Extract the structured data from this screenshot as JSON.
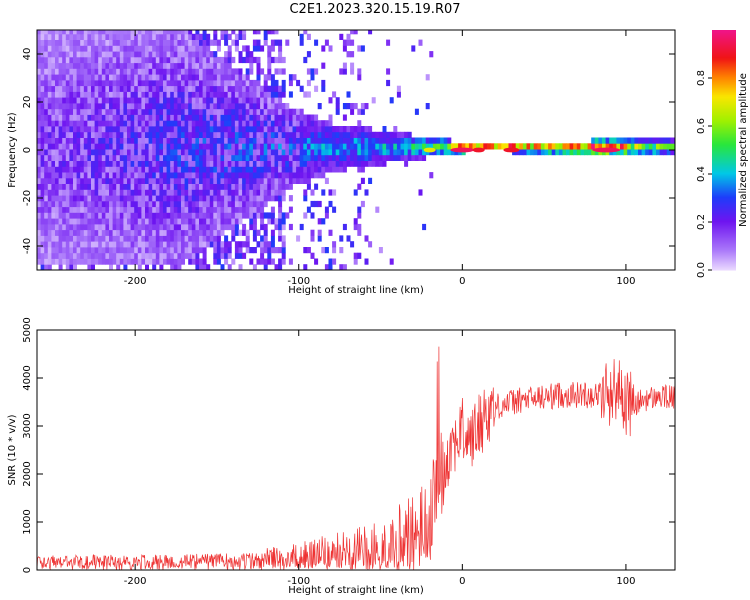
{
  "figure_title": "C2E1.2023.320.15.19.R07",
  "chart_data": [
    {
      "type": "heatmap",
      "xlabel": "Height of straight line (km)",
      "ylabel": "Frequency (Hz)",
      "xlim": [
        -260,
        130
      ],
      "ylim": [
        -50,
        50
      ],
      "xticks": [
        -200,
        -100,
        0,
        100
      ],
      "yticks": [
        -40,
        -20,
        0,
        20,
        40
      ],
      "colorbar": {
        "label": "Normalized spectral amplitude",
        "range": [
          0,
          1
        ],
        "ticks": [
          0.0,
          0.2,
          0.4,
          0.6,
          0.8
        ],
        "tick_labels": [
          "0.0",
          "0.2",
          "0.4",
          "0.6",
          "0.8"
        ]
      },
      "grid": false,
      "description_points": [
        {
          "x": -250,
          "spread": 50,
          "peak": 0.22
        },
        {
          "x": -175,
          "spread": 50,
          "peak": 0.3
        },
        {
          "x": -110,
          "spread": 18,
          "peak": 0.35
        },
        {
          "x": -80,
          "spread": 10,
          "peak": 0.4
        },
        {
          "x": -40,
          "spread": 6,
          "peak": 0.45
        },
        {
          "x": -20,
          "spread": 4,
          "peak": 0.55
        },
        {
          "x": 0,
          "spread": 2,
          "peak": 0.95
        },
        {
          "x": 30,
          "spread": 2,
          "peak": 0.9
        },
        {
          "x": 90,
          "spread": 3,
          "peak": 0.95
        },
        {
          "x": 130,
          "spread": 3,
          "peak": 0.5
        }
      ]
    },
    {
      "type": "line",
      "xlabel": "Height of straight line (km)",
      "ylabel": "SNR (10 * v/v)",
      "xlim": [
        -260,
        130
      ],
      "ylim": [
        0,
        5000
      ],
      "xticks": [
        -200,
        -100,
        0,
        100
      ],
      "yticks": [
        0,
        1000,
        2000,
        3000,
        4000,
        5000
      ],
      "color": "#ee3333",
      "grid": false,
      "series": [
        {
          "x": [
            -260,
            -240,
            -220,
            -200,
            -180,
            -160,
            -140,
            -120,
            -100,
            -90,
            -80,
            -70,
            -60,
            -50,
            -40,
            -30,
            -25,
            -20,
            -18,
            -16,
            -14,
            -12,
            -10,
            -8,
            -5,
            0,
            5,
            10,
            15,
            20,
            30,
            40,
            50,
            60,
            70,
            80,
            90,
            95,
            100,
            105,
            110,
            120,
            130
          ],
          "y": [
            200,
            200,
            210,
            220,
            220,
            230,
            240,
            260,
            300,
            340,
            400,
            450,
            500,
            550,
            600,
            700,
            900,
            1000,
            1400,
            1800,
            2200,
            2000,
            2300,
            2500,
            2700,
            2900,
            2700,
            3000,
            3300,
            3400,
            3500,
            3550,
            3600,
            3650,
            3650,
            3650,
            3700,
            3800,
            3500,
            3400,
            3550,
            3600,
            3600
          ]
        }
      ]
    }
  ]
}
